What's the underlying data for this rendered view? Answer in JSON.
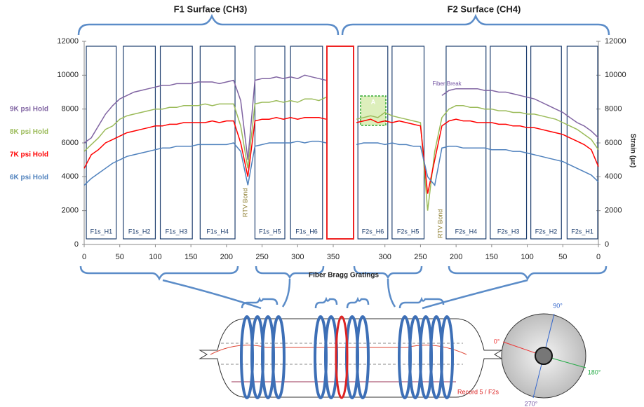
{
  "chart_data": [
    {
      "type": "line",
      "title": "F1 Surface (CH3)",
      "xlabel": "Fiber Bragg Gratings",
      "x": [
        0,
        10,
        20,
        30,
        40,
        50,
        60,
        70,
        80,
        90,
        100,
        110,
        120,
        130,
        140,
        150,
        160,
        170,
        180,
        190,
        200,
        210,
        220,
        230,
        240,
        250,
        260,
        270,
        280,
        290,
        300,
        310,
        320,
        330,
        340
      ],
      "series": [
        {
          "name": "9K psi Hold",
          "color": "#8064a2",
          "values": [
            6000,
            6300,
            7000,
            7700,
            8200,
            8600,
            8800,
            9000,
            9100,
            9200,
            9300,
            9400,
            9400,
            9500,
            9500,
            9500,
            9600,
            9600,
            9600,
            9500,
            9600,
            9700,
            8500,
            5000,
            9700,
            9800,
            9800,
            9900,
            9800,
            9900,
            9800,
            10000,
            9900,
            9800,
            9700
          ]
        },
        {
          "name": "8K psi Hold",
          "color": "#9bbb59",
          "values": [
            5500,
            5900,
            6300,
            6800,
            7000,
            7400,
            7600,
            7700,
            7800,
            7900,
            8000,
            8000,
            8100,
            8100,
            8200,
            8200,
            8200,
            8300,
            8200,
            8300,
            8300,
            8300,
            7000,
            4500,
            8300,
            8400,
            8400,
            8500,
            8400,
            8500,
            8400,
            8600,
            8600,
            8500,
            8700
          ]
        },
        {
          "name": "7K psi Hold",
          "color": "#ff0000",
          "values": [
            4500,
            5300,
            5600,
            6000,
            6200,
            6400,
            6600,
            6700,
            6800,
            6900,
            7000,
            7000,
            7100,
            7100,
            7200,
            7200,
            7200,
            7200,
            7300,
            7200,
            7300,
            7300,
            6000,
            4000,
            7300,
            7400,
            7400,
            7500,
            7400,
            7500,
            7400,
            7500,
            7500,
            7500,
            7400
          ]
        },
        {
          "name": "6K psi Hold",
          "color": "#4f81bd",
          "values": [
            3500,
            3900,
            4200,
            4500,
            4800,
            5000,
            5200,
            5300,
            5400,
            5500,
            5600,
            5700,
            5700,
            5800,
            5800,
            5800,
            5900,
            5900,
            5900,
            5900,
            5900,
            6000,
            5500,
            3500,
            5800,
            5900,
            6000,
            6000,
            6000,
            6000,
            6100,
            6000,
            6100,
            6100,
            6000
          ]
        }
      ],
      "xlim": [
        0,
        350
      ],
      "xticks": [
        0,
        50,
        100,
        150,
        200,
        250,
        300,
        350
      ],
      "ylim": [
        0,
        12000
      ],
      "yticks": [
        0,
        2000,
        4000,
        6000,
        8000,
        10000,
        12000
      ],
      "boxes": [
        "F1s_H1",
        "F1s_H2",
        "F1s_H3",
        "F1s_H4",
        "F1s_H5",
        "F1s_H6"
      ],
      "annotations": [
        "RTV Bond"
      ]
    },
    {
      "type": "line",
      "title": "F2 Surface (CH4)",
      "ylabel": "Strain (με)",
      "x": [
        340,
        330,
        320,
        310,
        300,
        290,
        280,
        270,
        260,
        250,
        240,
        230,
        220,
        210,
        200,
        190,
        180,
        170,
        160,
        150,
        140,
        130,
        120,
        110,
        100,
        90,
        80,
        70,
        60,
        50,
        40,
        30,
        20,
        10,
        0
      ],
      "series": [
        {
          "color": "#8064a2",
          "values": [
            null,
            null,
            null,
            null,
            null,
            null,
            null,
            null,
            null,
            null,
            null,
            null,
            8800,
            9100,
            9200,
            9200,
            9200,
            9200,
            9100,
            9100,
            9000,
            9000,
            8900,
            8800,
            8700,
            8600,
            8400,
            8200,
            8000,
            7800,
            7500,
            7200,
            7000,
            6700,
            6300
          ]
        },
        {
          "color": "#9bbb59",
          "values": [
            7400,
            7500,
            7600,
            7500,
            7800,
            7600,
            7500,
            7400,
            7300,
            7200,
            2000,
            5500,
            7500,
            8000,
            8200,
            8200,
            8100,
            8100,
            8000,
            8000,
            7900,
            7900,
            7800,
            7800,
            7700,
            7700,
            7600,
            7500,
            7400,
            7200,
            7000,
            6800,
            6500,
            6200,
            5600
          ]
        },
        {
          "color": "#ff0000",
          "values": [
            7200,
            7300,
            7400,
            7200,
            7300,
            7200,
            7300,
            7200,
            7100,
            7000,
            3000,
            5000,
            7000,
            7300,
            7400,
            7300,
            7300,
            7200,
            7200,
            7200,
            7100,
            7100,
            7000,
            7000,
            6900,
            6900,
            6800,
            6700,
            6600,
            6500,
            6300,
            6100,
            5900,
            5600,
            4600
          ]
        },
        {
          "color": "#4f81bd",
          "values": [
            5900,
            6000,
            6000,
            6000,
            5900,
            6000,
            5900,
            5900,
            5800,
            5800,
            4000,
            3500,
            5700,
            5800,
            5800,
            5700,
            5700,
            5700,
            5700,
            5600,
            5600,
            5600,
            5500,
            5500,
            5400,
            5300,
            5200,
            5100,
            5000,
            4900,
            4700,
            4500,
            4300,
            4100,
            3700
          ]
        }
      ],
      "xlim": [
        350,
        0
      ],
      "xticks": [
        300,
        250,
        200,
        150,
        100,
        50,
        0
      ],
      "ylim": [
        0,
        12000
      ],
      "yticks": [
        0,
        2000,
        4000,
        6000,
        8000,
        10000,
        12000
      ],
      "boxes": [
        "F2s_H6",
        "F2s_H5",
        "F2s_H4",
        "F2s_H3",
        "F2s_H2",
        "F2s_H1"
      ],
      "annotations": [
        "A",
        "Fiber Break",
        "RTV Bond"
      ]
    }
  ],
  "diagram": {
    "angles": [
      "0°",
      "90°",
      "180°",
      "270°"
    ],
    "record": "Record 5 / F2s"
  }
}
